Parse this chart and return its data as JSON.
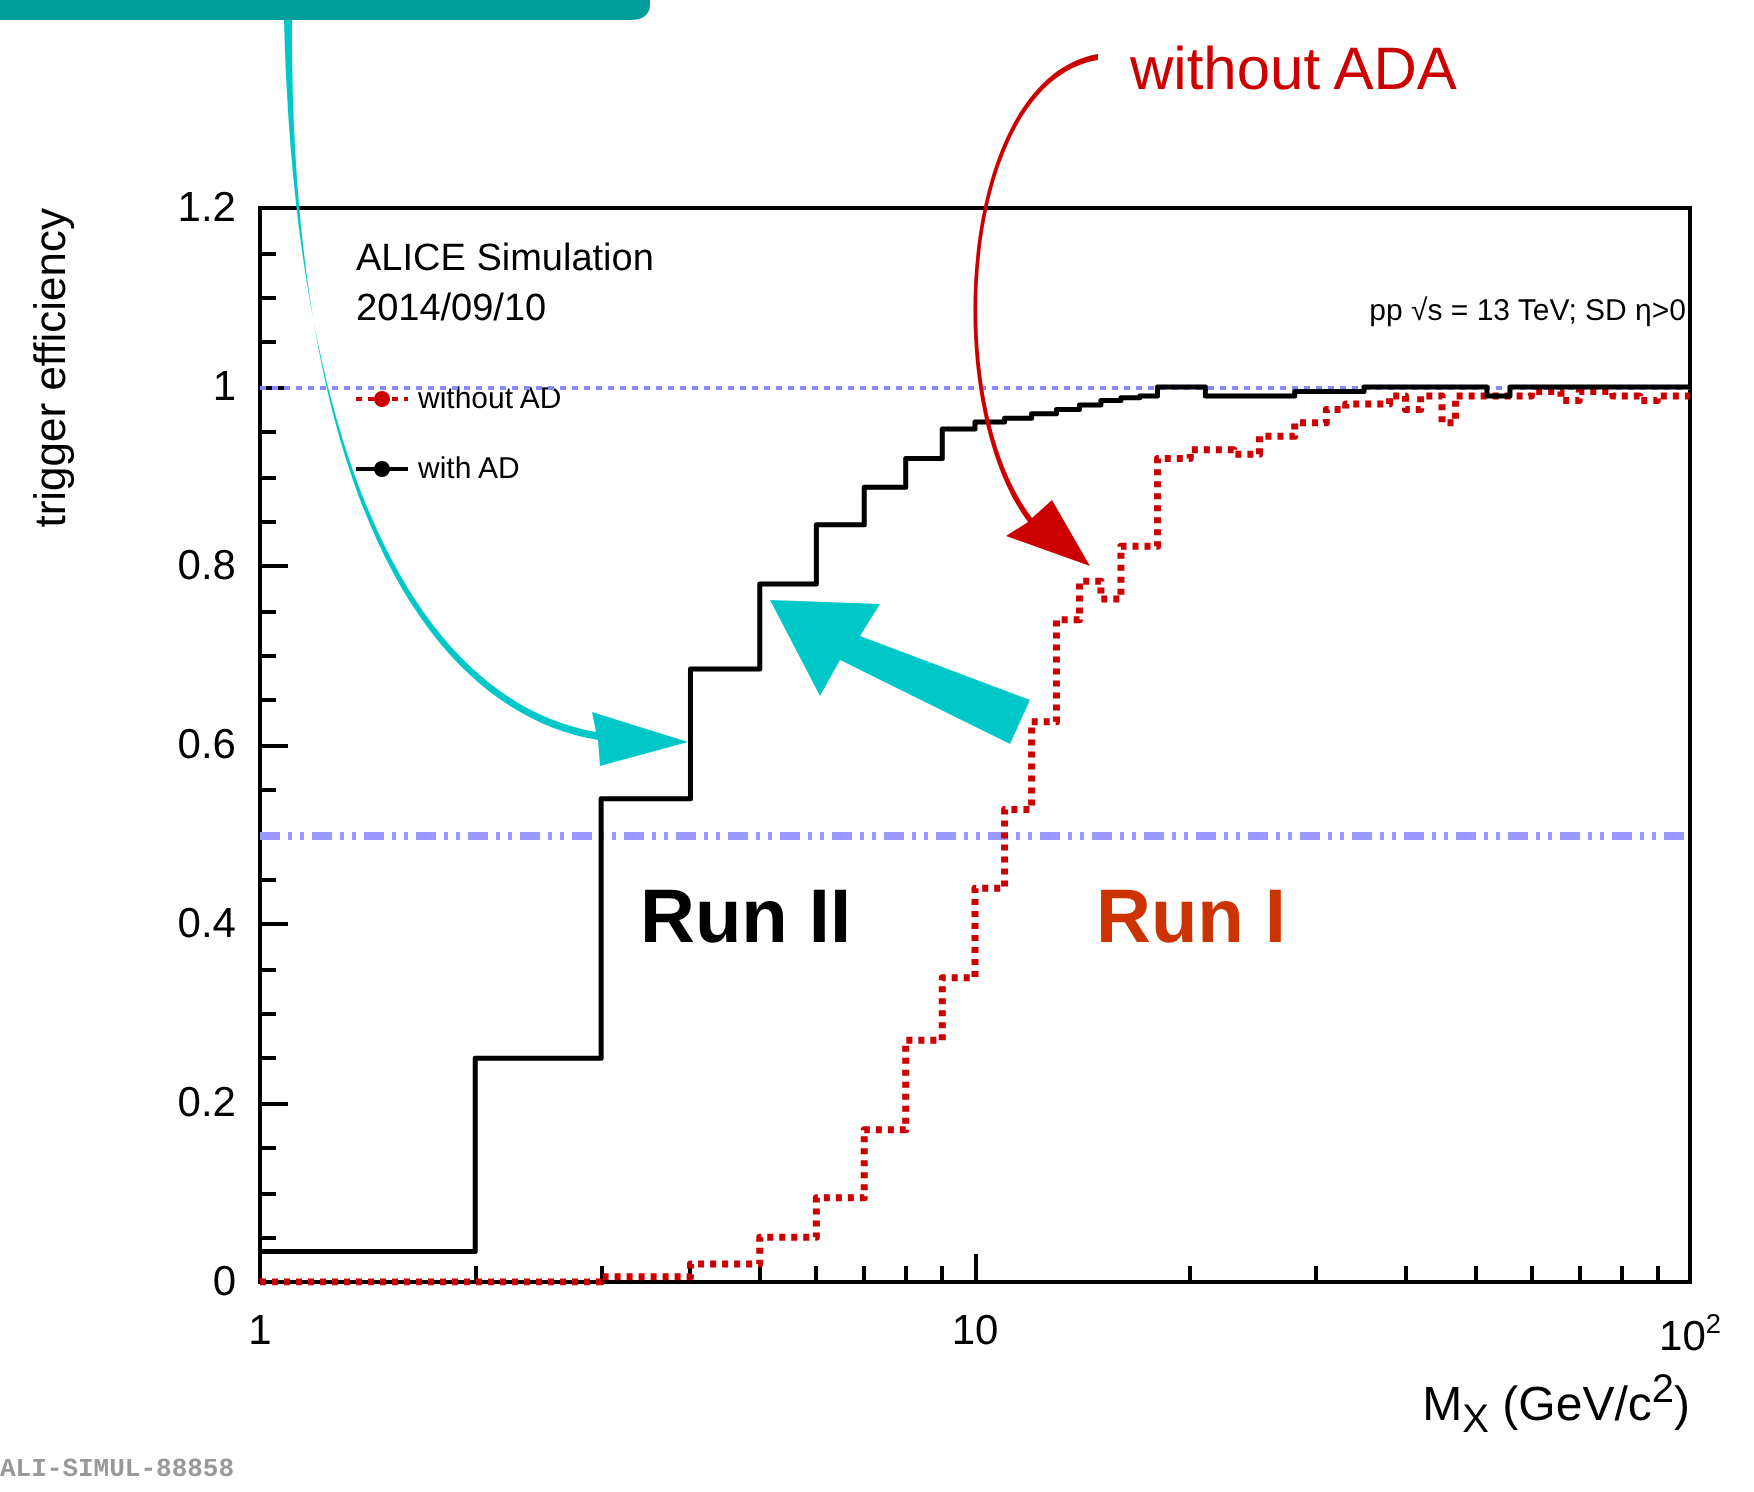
{
  "chart_data": {
    "type": "step",
    "xlabel": "M$_{X}$ (GeV/c$^{2}$)",
    "ylabel": "trigger efficiency",
    "log": "x",
    "xlim": [
      1,
      100
    ],
    "xticks": [
      1,
      10,
      {
        "value": 100,
        "label": "10$^{2}$"
      }
    ],
    "ylim": [
      0,
      1.2
    ],
    "yticks": [
      0,
      0.2,
      0.4,
      0.6,
      0.8,
      1,
      1.2
    ],
    "grid": false,
    "legend": "top left",
    "series": [
      {
        "name": "without AD",
        "color": "#cc0000",
        "line_style": "dotted",
        "x": [
          1,
          3,
          4,
          5,
          6,
          7,
          8,
          9,
          10,
          11,
          12,
          13,
          14,
          15,
          16,
          18,
          20,
          23,
          25,
          28,
          31,
          33,
          38,
          40,
          42,
          45,
          47,
          60,
          66,
          70,
          78,
          85,
          90,
          100
        ],
        "values": [
          0,
          0.006,
          0.02,
          0.05,
          0.094,
          0.17,
          0.27,
          0.34,
          0.44,
          0.528,
          0.626,
          0.74,
          0.783,
          0.763,
          0.822,
          0.92,
          0.93,
          0.925,
          0.945,
          0.96,
          0.975,
          0.981,
          0.99,
          0.975,
          0.99,
          0.96,
          0.99,
          0.995,
          0.985,
          0.995,
          0.99,
          0.985,
          0.99,
          0.99
        ]
      },
      {
        "name": "with AD",
        "color": "#000000",
        "line_style": "solid",
        "x": [
          1,
          2,
          3,
          4,
          5,
          6,
          7,
          8,
          9,
          10,
          11,
          12,
          13,
          14,
          15,
          16,
          17,
          18,
          21,
          28,
          35,
          52,
          56,
          100
        ],
        "values": [
          0.034,
          0.25,
          0.54,
          0.685,
          0.78,
          0.846,
          0.888,
          0.92,
          0.953,
          0.961,
          0.965,
          0.97,
          0.975,
          0.98,
          0.985,
          0.988,
          0.99,
          1,
          0.99,
          0.995,
          1,
          0.99,
          1,
          1
        ]
      }
    ],
    "ref_lines": [
      {
        "axis": "y",
        "value": 1,
        "color": "#8888ff",
        "line_style": "dotted"
      },
      {
        "axis": "y",
        "value": 0.5,
        "color": "#9999ff",
        "line_style": "dashed"
      }
    ],
    "annotations": [
      "ALICE Simulation",
      "2014/09/10",
      "pp √s = 13 TeV; SD η>0",
      "Run II",
      "Run I",
      "without ADA",
      "ALI-SIMUL-88858"
    ]
  }
}
